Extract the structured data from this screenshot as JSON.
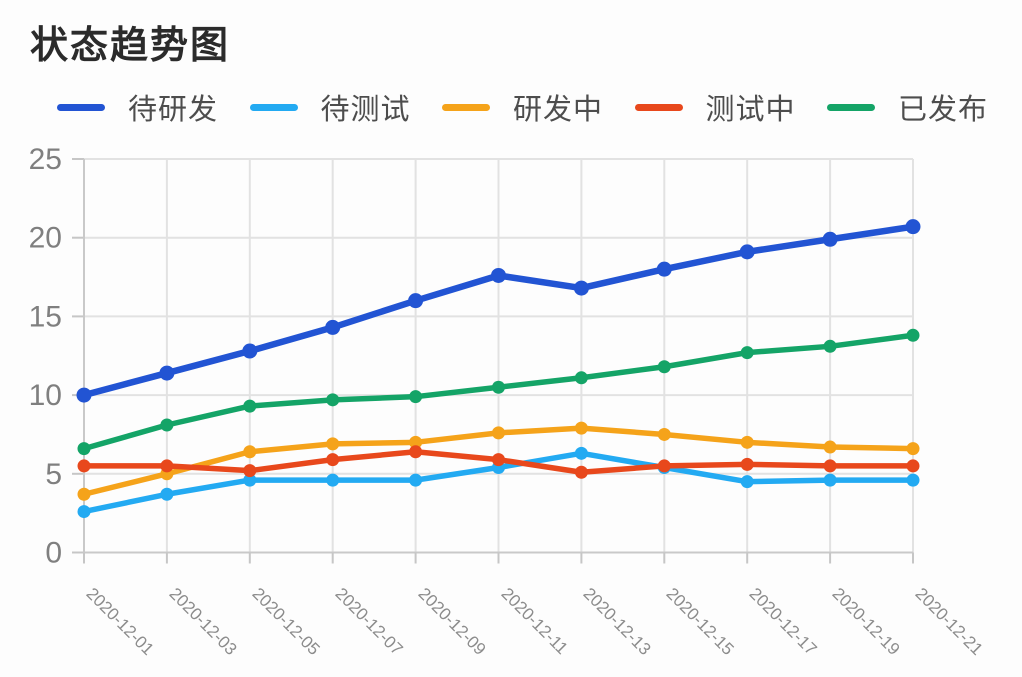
{
  "title": "状态趋势图",
  "chart_data": {
    "type": "line",
    "categories": [
      "2020-12-01",
      "2020-12-03",
      "2020-12-05",
      "2020-12-07",
      "2020-12-09",
      "2020-12-11",
      "2020-12-13",
      "2020-12-15",
      "2020-12-17",
      "2020-12-19",
      "2020-12-21"
    ],
    "series": [
      {
        "name": "待研发",
        "color": "#2254d3",
        "values": [
          10,
          11.4,
          12.8,
          14.3,
          16,
          17.6,
          16.8,
          18,
          19.1,
          19.9,
          20.7
        ]
      },
      {
        "name": "待测试",
        "color": "#23aaf2",
        "values": [
          2.6,
          3.7,
          4.6,
          4.6,
          4.6,
          5.4,
          6.3,
          5.4,
          4.5,
          4.6,
          4.6
        ]
      },
      {
        "name": "研发中",
        "color": "#f5a31a",
        "values": [
          3.7,
          5.0,
          6.4,
          6.9,
          7.0,
          7.6,
          7.9,
          7.5,
          7.0,
          6.7,
          6.6
        ]
      },
      {
        "name": "测试中",
        "color": "#e8481c",
        "values": [
          5.5,
          5.5,
          5.2,
          5.9,
          6.4,
          5.9,
          5.1,
          5.5,
          5.6,
          5.5,
          5.5
        ]
      },
      {
        "name": "已发布",
        "color": "#14a467",
        "values": [
          6.6,
          8.1,
          9.3,
          9.7,
          9.9,
          10.5,
          11.1,
          11.8,
          12.7,
          13.1,
          13.8
        ]
      }
    ],
    "title": "状态趋势图",
    "xlabel": "",
    "ylabel": "",
    "ylim": [
      0,
      25
    ],
    "y_ticks": [
      25,
      20,
      15,
      10,
      5,
      0
    ],
    "grid": true,
    "legend_position": "top",
    "x_label_rotation": 45
  }
}
